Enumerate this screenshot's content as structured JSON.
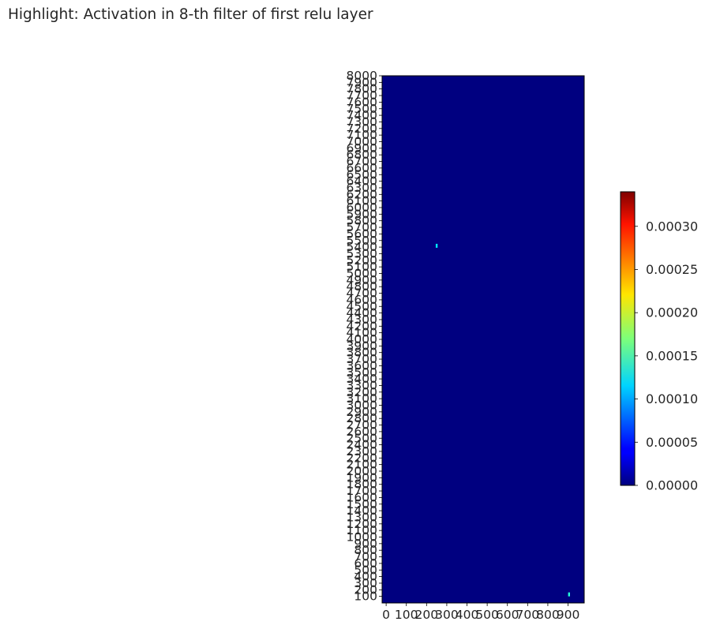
{
  "chart_data": [
    {
      "type": "heatmap",
      "title": "Highlight: Activation in 8-th filter of first relu layer",
      "xlabel": "",
      "ylabel": "",
      "x_ticks": [
        "0",
        "100",
        "200",
        "300",
        "400",
        "500",
        "600",
        "700",
        "800",
        "900"
      ],
      "xlim": [
        -20,
        980
      ],
      "y_ticks": [
        "100",
        "200",
        "300",
        "400",
        "500",
        "600",
        "700",
        "800",
        "900",
        "1000",
        "1100",
        "1200",
        "1300",
        "1400",
        "1500",
        "1600",
        "1700",
        "1800",
        "1900",
        "2000",
        "2100",
        "2200",
        "2300",
        "2400",
        "2500",
        "2600",
        "2700",
        "2800",
        "2900",
        "3000",
        "3100",
        "3200",
        "3300",
        "3400",
        "3500",
        "3600",
        "3700",
        "3800",
        "3900",
        "4000",
        "4100",
        "4200",
        "4300",
        "4400",
        "4500",
        "4600",
        "4700",
        "4800",
        "4900",
        "5000",
        "5100",
        "5200",
        "5300",
        "5400",
        "5500",
        "5600",
        "5700",
        "5800",
        "5900",
        "6000",
        "6100",
        "6200",
        "6300",
        "6400",
        "6500",
        "6600",
        "6700",
        "6800",
        "6900",
        "7000",
        "7100",
        "7200",
        "7300",
        "7400",
        "7500",
        "7600",
        "7700",
        "7800",
        "7900",
        "8000"
      ],
      "ylim": [
        0,
        8000
      ],
      "background_value": 0.0,
      "hotspots": [
        {
          "x": 250,
          "y": 5420,
          "value": 0.00012
        },
        {
          "x": 905,
          "y": 130,
          "value": 0.00014
        }
      ],
      "colorbar": {
        "colormap": "jet",
        "range": [
          0.0,
          0.00034
        ],
        "ticks": [
          "0.00000",
          "0.00005",
          "0.00010",
          "0.00015",
          "0.00020",
          "0.00025",
          "0.00030"
        ],
        "tick_values": [
          0.0,
          5e-05,
          0.0001,
          0.00015,
          0.0002,
          0.00025,
          0.0003
        ]
      },
      "grid": false,
      "legend": "none"
    }
  ]
}
